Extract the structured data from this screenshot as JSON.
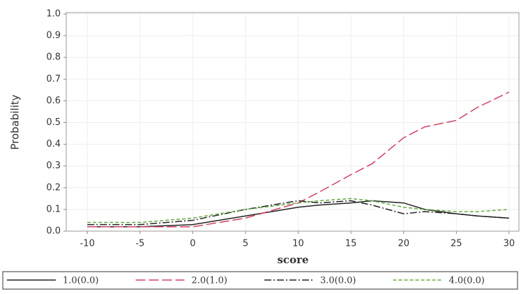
{
  "chart_data": {
    "type": "line",
    "x_label": "score",
    "y_label": "Probability",
    "x": [
      -10,
      -5,
      0,
      5,
      10,
      12,
      15,
      17,
      20,
      22,
      25,
      27,
      30
    ],
    "series": [
      {
        "name": "1.0(0.0)",
        "color": "#222222",
        "dash": "none",
        "values": [
          0.02,
          0.02,
          0.03,
          0.07,
          0.11,
          0.12,
          0.13,
          0.14,
          0.13,
          0.1,
          0.08,
          0.07,
          0.06
        ]
      },
      {
        "name": "2.0(1.0)",
        "color": "#d04060",
        "dash": "14,5",
        "values": [
          0.02,
          0.02,
          0.02,
          0.06,
          0.13,
          0.18,
          0.26,
          0.31,
          0.43,
          0.48,
          0.51,
          0.57,
          0.64
        ]
      },
      {
        "name": "3.0(0.0)",
        "color": "#222222",
        "dash": "10,3,2,3",
        "values": [
          0.03,
          0.03,
          0.05,
          0.1,
          0.14,
          0.13,
          0.14,
          0.12,
          0.08,
          0.09,
          0.08,
          0.07,
          0.06
        ]
      },
      {
        "name": "4.0(0.0)",
        "color": "#66aa44",
        "dash": "5,3",
        "values": [
          0.04,
          0.04,
          0.06,
          0.1,
          0.13,
          0.14,
          0.15,
          0.14,
          0.11,
          0.1,
          0.09,
          0.09,
          0.1
        ]
      }
    ],
    "xlim": [
      -12,
      31
    ],
    "xticks": [
      -10,
      -5,
      0,
      5,
      10,
      15,
      20,
      25,
      30
    ],
    "ylim": [
      0,
      1
    ],
    "yticks": [
      {
        "value": 0,
        "label": "0.0"
      },
      0.1,
      0.2,
      0.3,
      0.4,
      0.5,
      0.6,
      0.7,
      0.8,
      0.9,
      {
        "value": 1,
        "label": "1.0"
      }
    ],
    "grid": true,
    "legend": "bottom"
  }
}
